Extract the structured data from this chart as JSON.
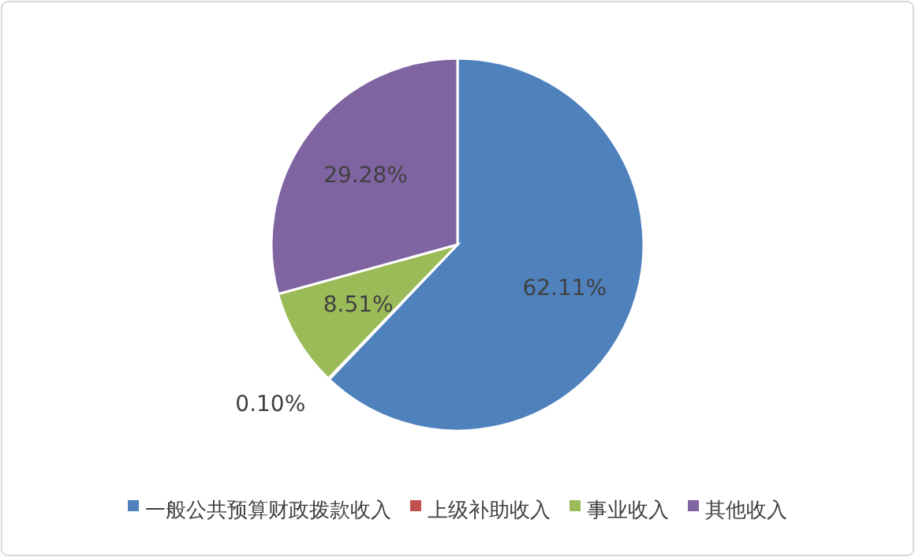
{
  "chart_data": {
    "type": "pie",
    "categories": [
      "一般公共预算财政拨款收入",
      "上级补助收入",
      "事业收入",
      "其他收入"
    ],
    "values": [
      62.11,
      0.1,
      8.51,
      29.28
    ],
    "colors": [
      "#4f81bd",
      "#c0504d",
      "#9bbb59",
      "#8064a2"
    ],
    "value_labels": [
      "62.11%",
      "0.10%",
      "8.51%",
      "29.28%"
    ],
    "legend": "bottom"
  }
}
